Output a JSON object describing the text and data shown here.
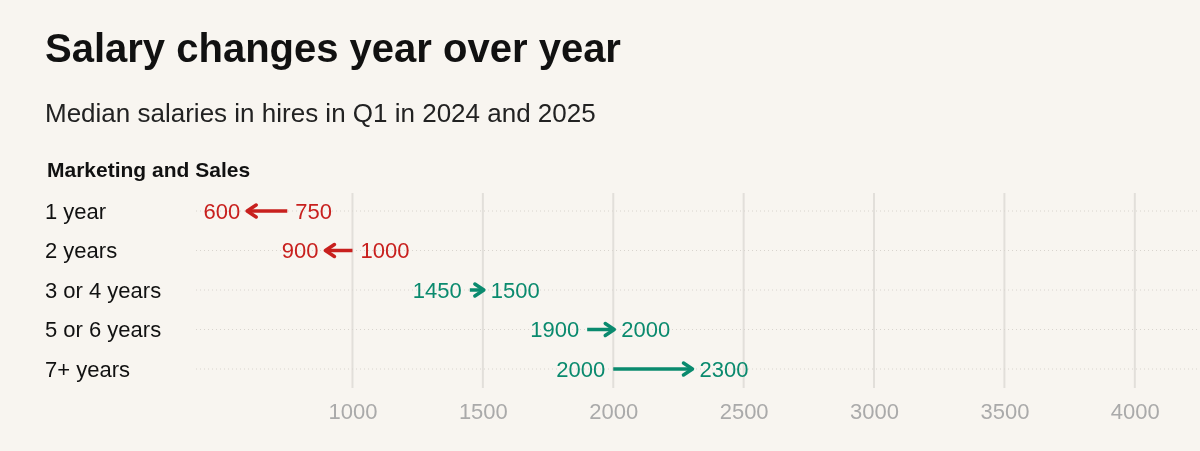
{
  "chart_data": {
    "type": "bar",
    "orientation": "horizontal",
    "title": "Salary changes year over year",
    "subtitle": "Median salaries in hires in Q1 in 2024 and 2025",
    "ylabel": "Marketing and Sales",
    "categories": [
      "1 year",
      "2 years",
      "3 or 4 years",
      "5 or 6 years",
      "7+ years"
    ],
    "base": [
      750,
      1000,
      1450,
      1900,
      2000
    ],
    "values": [
      -150,
      -100,
      50,
      100,
      300
    ],
    "colors": [
      "#c8201e",
      "#c8201e",
      "#0a8a6e",
      "#0a8a6e",
      "#0a8a6e"
    ],
    "xlim": [
      400,
      4250
    ],
    "xticks": [
      1000,
      1500,
      2000,
      2500,
      3000,
      3500,
      4000
    ],
    "grid": true,
    "annotations": [
      {
        "text": "750",
        "x": 750,
        "y": "1 year"
      },
      {
        "text": "600",
        "x": 600,
        "y": "1 year"
      },
      {
        "text": "1000",
        "x": 1000,
        "y": "2 years"
      },
      {
        "text": "900",
        "x": 900,
        "y": "2 years"
      },
      {
        "text": "1450",
        "x": 1450,
        "y": "3 or 4 years"
      },
      {
        "text": "1500",
        "x": 1500,
        "y": "3 or 4 years"
      },
      {
        "text": "1900",
        "x": 1900,
        "y": "5 or 6 years"
      },
      {
        "text": "2000",
        "x": 2000,
        "y": "5 or 6 years"
      },
      {
        "text": "2000",
        "x": 2000,
        "y": "7+ years"
      },
      {
        "text": "2300",
        "x": 2300,
        "y": "7+ years"
      }
    ]
  }
}
